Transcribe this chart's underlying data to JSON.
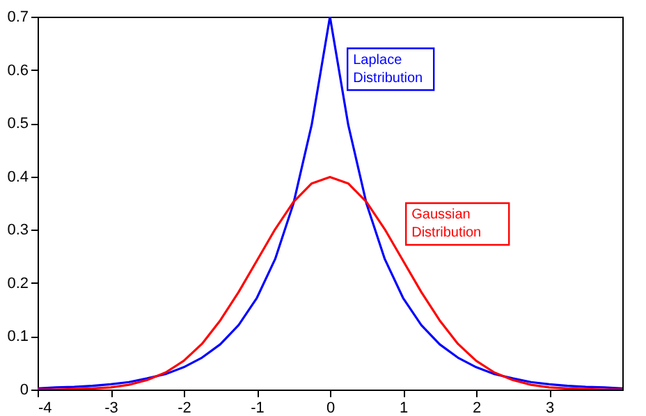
{
  "chart_data": {
    "type": "line",
    "x": [
      -4,
      -3.75,
      -3.5,
      -3.25,
      -3,
      -2.75,
      -2.5,
      -2.25,
      -2,
      -1.75,
      -1.5,
      -1.25,
      -1,
      -0.75,
      -0.5,
      -0.25,
      0,
      0.25,
      0.5,
      0.75,
      1,
      1.25,
      1.5,
      1.75,
      2,
      2.25,
      2.5,
      2.75,
      3,
      3.25,
      3.5,
      3.75,
      4
    ],
    "series": [
      {
        "name": "Laplace Distribution",
        "color": "#0000ff",
        "values": [
          0.002,
          0.004,
          0.005,
          0.007,
          0.01,
          0.014,
          0.021,
          0.029,
          0.042,
          0.06,
          0.085,
          0.121,
          0.172,
          0.245,
          0.349,
          0.497,
          0.7,
          0.497,
          0.349,
          0.245,
          0.172,
          0.121,
          0.085,
          0.06,
          0.042,
          0.029,
          0.021,
          0.014,
          0.01,
          0.007,
          0.005,
          0.004,
          0.002
        ]
      },
      {
        "name": "Gaussian Distribution",
        "color": "#ff0000",
        "values": [
          0,
          0,
          0.001,
          0.002,
          0.004,
          0.009,
          0.018,
          0.032,
          0.054,
          0.086,
          0.13,
          0.183,
          0.242,
          0.301,
          0.352,
          0.387,
          0.399,
          0.387,
          0.352,
          0.301,
          0.242,
          0.183,
          0.13,
          0.086,
          0.054,
          0.032,
          0.018,
          0.009,
          0.004,
          0.002,
          0.001,
          0,
          0
        ]
      }
    ],
    "xlim": [
      -4,
      4
    ],
    "xticks": [
      -4,
      -3,
      -2,
      -1,
      0,
      1,
      2,
      3
    ],
    "ylim": [
      0,
      0.7
    ],
    "yticks": [
      0,
      0.1,
      0.2,
      0.3,
      0.4,
      0.5,
      0.6,
      0.7
    ],
    "grid": false,
    "legend": false,
    "line_style": "solid"
  }
}
